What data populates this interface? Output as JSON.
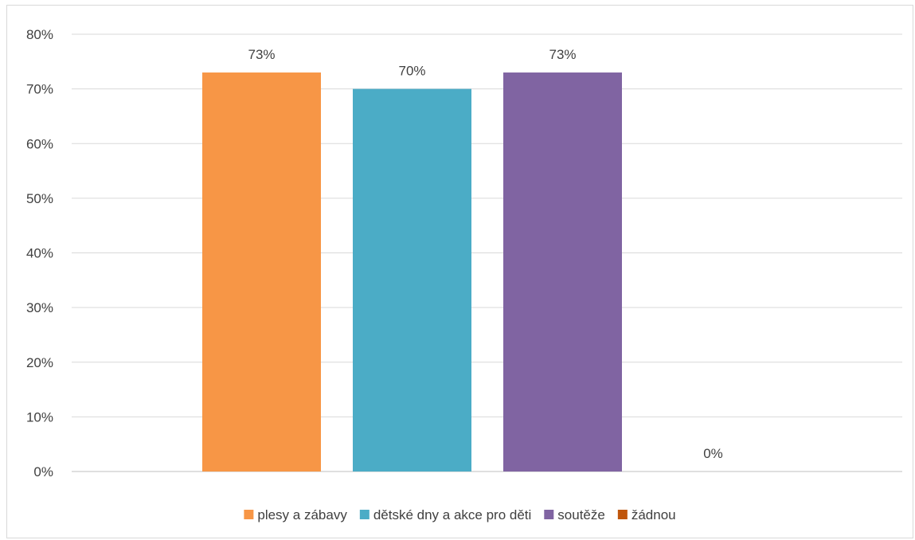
{
  "chart_data": {
    "type": "bar",
    "title": "",
    "xlabel": "",
    "ylabel": "",
    "ylim": [
      0,
      80
    ],
    "yticks": [
      "0%",
      "10%",
      "20%",
      "30%",
      "40%",
      "50%",
      "60%",
      "70%",
      "80%"
    ],
    "grid": true,
    "legend_position": "bottom",
    "series": [
      {
        "name": "plesy a zábavy",
        "value": 73,
        "label": "73%",
        "color": "#F79646"
      },
      {
        "name": "dětské dny a akce pro děti",
        "value": 70,
        "label": "70%",
        "color": "#4BACC6"
      },
      {
        "name": "soutěže",
        "value": 73,
        "label": "73%",
        "color": "#8064A2"
      },
      {
        "name": "žádnou",
        "value": 0,
        "label": "0%",
        "color": "#C0560C"
      }
    ]
  }
}
